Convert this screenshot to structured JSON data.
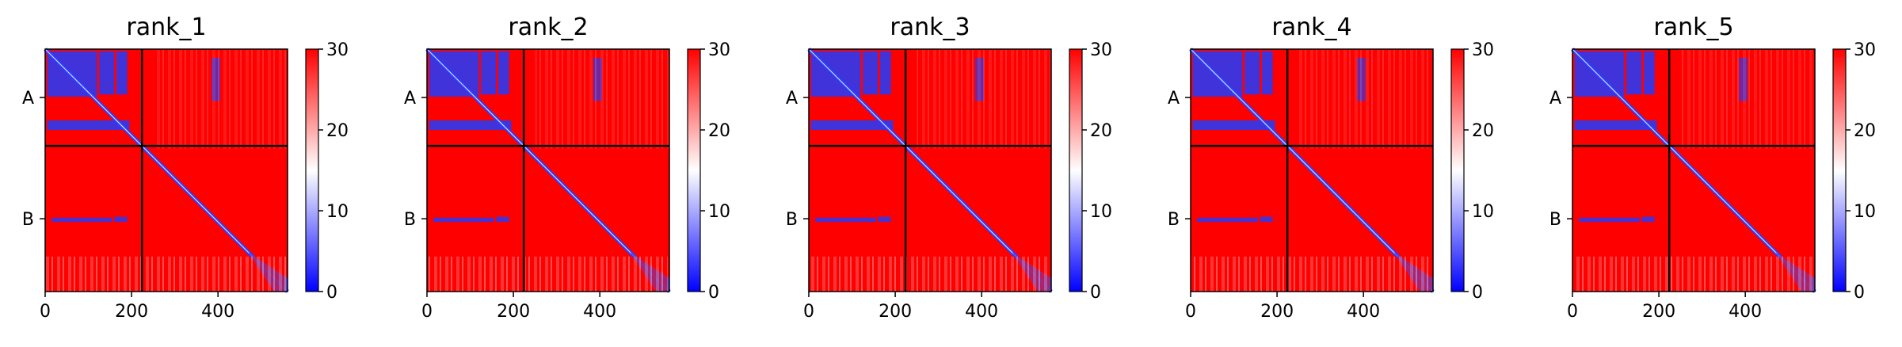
{
  "chart_data": {
    "type": "heatmap",
    "colormap": {
      "low": "#0000ff",
      "mid": "#ffffff",
      "high": "#ff0000"
    },
    "vmin": 0,
    "vmax": 30,
    "colorbar_ticks": [
      "0",
      "10",
      "20",
      "30"
    ],
    "x_ticks": [
      0,
      200,
      400
    ],
    "x_tick_labels": [
      "0",
      "200",
      "400"
    ],
    "xlim": [
      0,
      561
    ],
    "chain_boundary": 224,
    "chains": [
      {
        "label": "A",
        "start": 0,
        "end": 224
      },
      {
        "label": "B",
        "start": 224,
        "end": 561
      }
    ],
    "panels": [
      {
        "title": "rank_1"
      },
      {
        "title": "rank_2"
      },
      {
        "title": "rank_3"
      },
      {
        "title": "rank_4"
      },
      {
        "title": "rank_5"
      }
    ]
  }
}
